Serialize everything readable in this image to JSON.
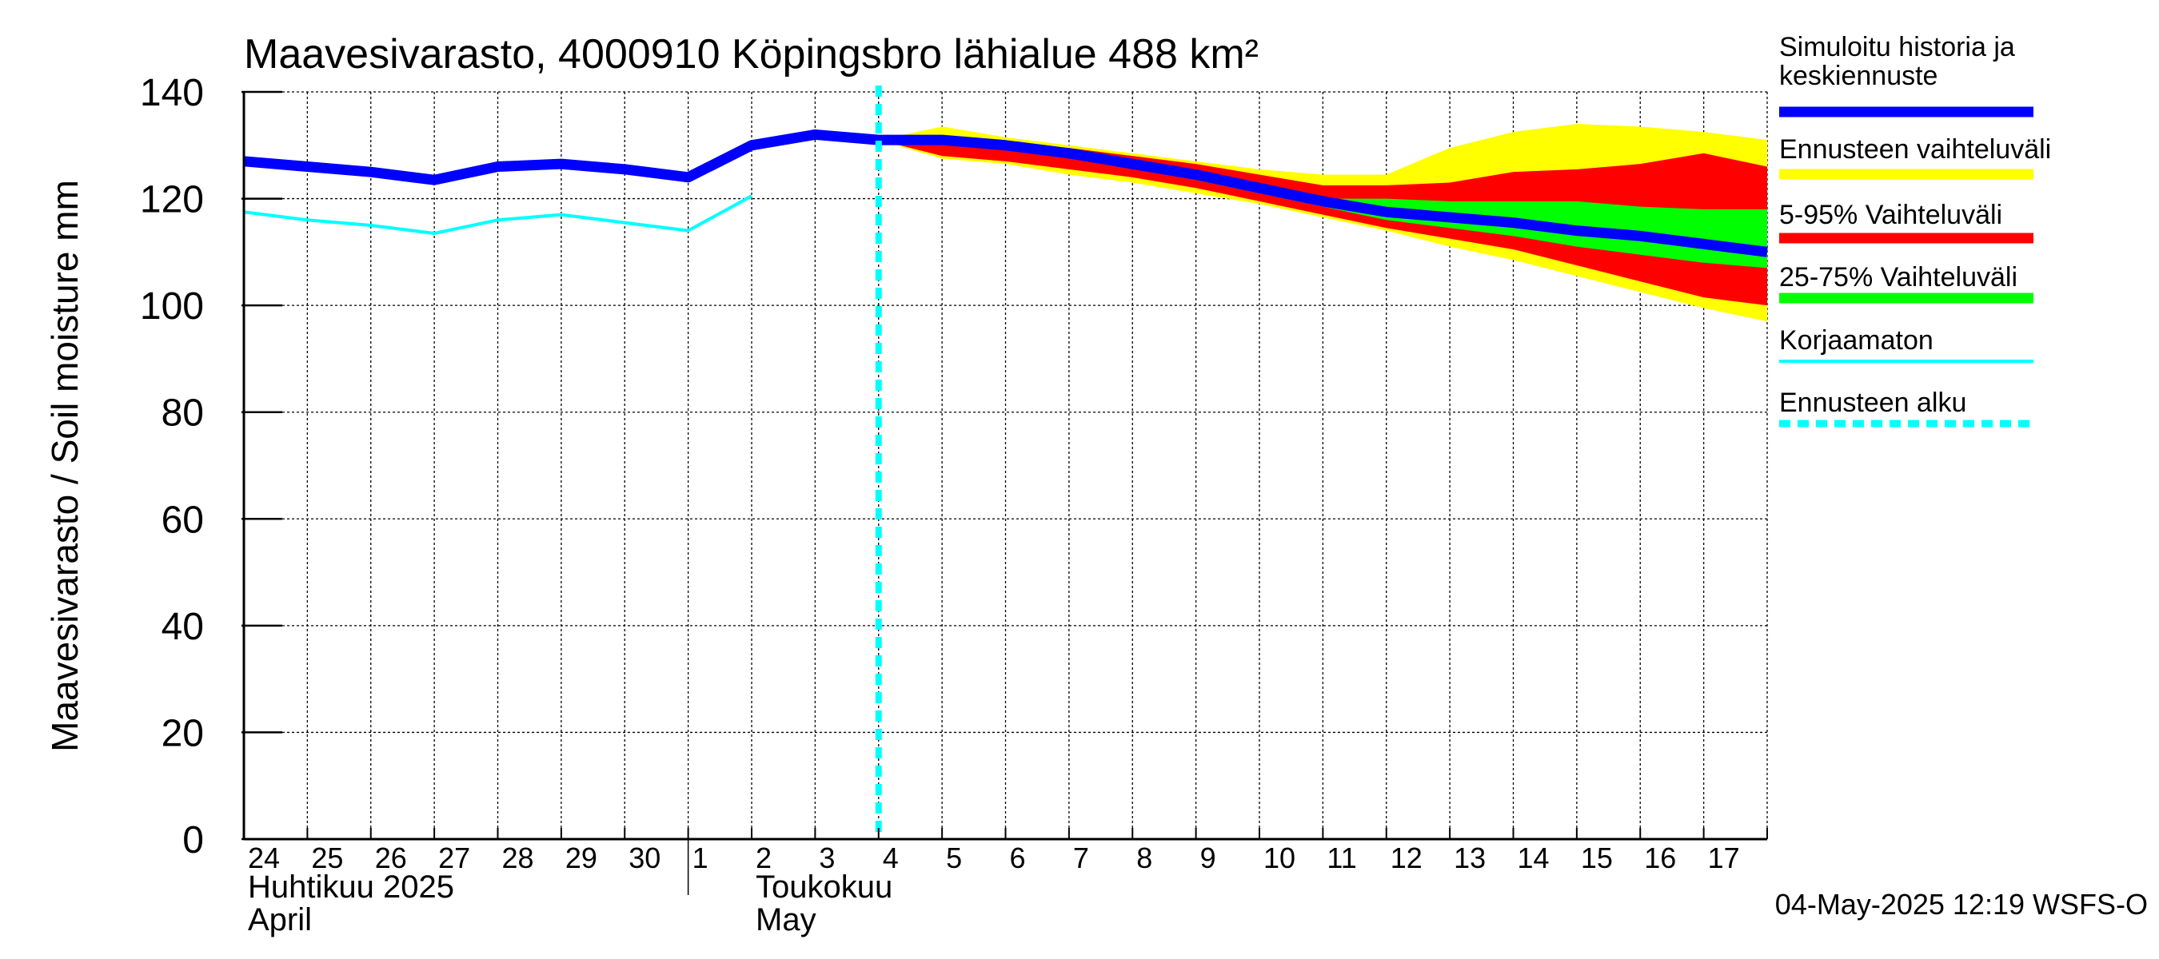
{
  "chart_data": {
    "type": "area",
    "title": "Maavesivarasto, 4000910 Köpingsbro lähialue 488 km²",
    "ylabel": "Maavesivarasto / Soil moisture   mm",
    "ylim": [
      0,
      140
    ],
    "yticks": [
      0,
      20,
      40,
      60,
      80,
      100,
      120,
      140
    ],
    "xlim": [
      0,
      24
    ],
    "grid": true,
    "x_tick_labels": [
      "24",
      "25",
      "26",
      "27",
      "28",
      "29",
      "30",
      "1",
      "2",
      "3",
      "4",
      "5",
      "6",
      "7",
      "8",
      "9",
      "10",
      "11",
      "12",
      "13",
      "14",
      "15",
      "16",
      "17"
    ],
    "month_labels": [
      {
        "fi": "Huhtikuu  2025",
        "en": "April",
        "x": 0
      },
      {
        "fi": "Toukokuu",
        "en": "May",
        "x": 8
      }
    ],
    "month_boundary_x": 7,
    "forecast_start_x": 10,
    "colors": {
      "simulated": "#0000ff",
      "range_full": "#ffff00",
      "range_5_95": "#ff0000",
      "range_25_75": "#00ff00",
      "uncorrected": "#00ffff",
      "forecast_start": "#00ffff"
    },
    "series": {
      "simulated": {
        "name": "Simuloitu historia ja keskiennuste",
        "x": [
          0,
          1,
          2,
          3,
          4,
          5,
          6,
          7,
          8,
          9,
          10,
          11,
          12,
          13,
          14,
          15,
          16,
          17,
          18,
          19,
          20,
          21,
          22,
          23,
          24
        ],
        "y": [
          127,
          126,
          125,
          123.5,
          126,
          126.5,
          125.5,
          124,
          130,
          132,
          131,
          131,
          130,
          128.5,
          126.5,
          124.5,
          122,
          119.5,
          117.5,
          116.5,
          115.5,
          114,
          113,
          111.5,
          110
        ]
      },
      "uncorrected": {
        "name": "Korjaamaton",
        "x": [
          0,
          1,
          2,
          3,
          4,
          5,
          6,
          7,
          8
        ],
        "y": [
          117.5,
          116,
          115,
          113.5,
          116,
          117,
          115.5,
          114,
          120.5
        ]
      },
      "range_full": {
        "name": "Ennusteen vaihteluväli",
        "x": [
          10,
          11,
          12,
          13,
          14,
          15,
          16,
          17,
          18,
          19,
          20,
          21,
          22,
          23,
          24
        ],
        "upper": [
          131,
          133.5,
          131.5,
          130,
          128.5,
          127,
          125.5,
          124.5,
          124.5,
          129.5,
          132.5,
          134,
          133.5,
          132.5,
          131
        ],
        "lower": [
          131,
          127.5,
          126.5,
          124.5,
          123,
          121,
          119,
          116.5,
          114,
          111,
          108.5,
          105.5,
          102.5,
          99.5,
          97
        ]
      },
      "range_5_95": {
        "name": "5-95% Vaihteluväli",
        "x": [
          10,
          11,
          12,
          13,
          14,
          15,
          16,
          17,
          18,
          19,
          20,
          21,
          22,
          23,
          24
        ],
        "upper": [
          131,
          131.5,
          130.5,
          129.5,
          128,
          126.5,
          124.5,
          122.5,
          122.5,
          123,
          125,
          125.5,
          126.5,
          128.5,
          126
        ],
        "lower": [
          131,
          128,
          127,
          125.5,
          124,
          122,
          119.5,
          117,
          114.5,
          112.5,
          110.5,
          107.5,
          104.5,
          101.5,
          100
        ]
      },
      "range_25_75": {
        "name": "25-75% Vaihteluväli",
        "x": [
          10,
          11,
          12,
          13,
          14,
          15,
          16,
          17,
          18,
          19,
          20,
          21,
          22,
          23,
          24
        ],
        "upper": [
          131,
          131,
          130,
          128.5,
          126.5,
          124.5,
          122,
          120,
          120,
          119.5,
          119.5,
          119.5,
          118.5,
          118,
          118
        ],
        "lower": [
          131,
          130.5,
          129.5,
          128,
          126,
          123.5,
          121,
          118.5,
          116,
          114.5,
          113,
          111,
          109.5,
          108,
          107
        ]
      }
    },
    "legend": {
      "position": "right",
      "items": [
        {
          "key": "simulated",
          "label_lines": [
            "Simuloitu historia ja",
            "keskiennuste"
          ],
          "color": "#0000ff",
          "style": "thick"
        },
        {
          "key": "range_full",
          "label_lines": [
            "Ennusteen vaihteluväli"
          ],
          "color": "#ffff00",
          "style": "thick"
        },
        {
          "key": "range_5_95",
          "label_lines": [
            "5-95% Vaihteluväli"
          ],
          "color": "#ff0000",
          "style": "thick"
        },
        {
          "key": "range_25_75",
          "label_lines": [
            "25-75% Vaihteluväli"
          ],
          "color": "#00ff00",
          "style": "thick"
        },
        {
          "key": "uncorrected",
          "label_lines": [
            "Korjaamaton"
          ],
          "color": "#00ffff",
          "style": "thin"
        },
        {
          "key": "forecast_start",
          "label_lines": [
            "Ennusteen alku"
          ],
          "color": "#00ffff",
          "style": "dashed"
        }
      ]
    },
    "footer": "04-May-2025 12:19 WSFS-O"
  }
}
